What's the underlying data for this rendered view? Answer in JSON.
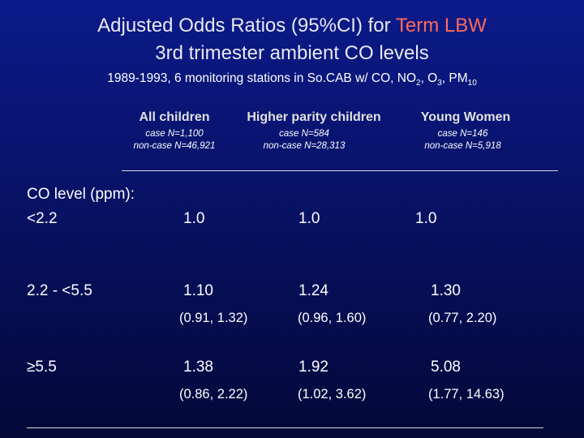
{
  "title": {
    "line1_prefix": "Adjusted Odds Ratios (95%CI) for ",
    "line1_highlight": "Term LBW",
    "line2": "3rd trimester ambient CO levels"
  },
  "subtitle": {
    "prefix": "1989-1993, 6 monitoring stations in So.CAB w/ CO, NO",
    "no2_sub": "2",
    "o3_text": ", O",
    "o3_sub": "3",
    "pm_text": ", PM",
    "pm_sub": "10"
  },
  "columns": [
    {
      "header": "All children",
      "cases": "case N=1,100",
      "noncases": "non-case N=46,921"
    },
    {
      "header": "Higher parity children",
      "cases": "case N=584",
      "noncases": "non-case N=28,313"
    },
    {
      "header": "Young Women",
      "cases": "case N=146",
      "noncases": "non-case N=5,918"
    }
  ],
  "row_header": {
    "line1": "CO level (ppm):"
  },
  "rows": [
    {
      "label": "<2.2",
      "values": [
        {
          "or": "1.0",
          "ci": ""
        },
        {
          "or": "1.0",
          "ci": ""
        },
        {
          "or": "1.0",
          "ci": ""
        }
      ]
    },
    {
      "label": "2.2 - <5.5",
      "values": [
        {
          "or": "1.10",
          "ci": "(0.91, 1.32)"
        },
        {
          "or": "1.24",
          "ci": "(0.96, 1.60)"
        },
        {
          "or": "1.30",
          "ci": "(0.77, 2.20)"
        }
      ]
    },
    {
      "label": "≥5.5",
      "values": [
        {
          "or": "1.38",
          "ci": "(0.86, 2.22)"
        },
        {
          "or": "1.92",
          "ci": "(1.02, 3.62)"
        },
        {
          "or": "5.08",
          "ci": "(1.77, 14.63)"
        }
      ]
    }
  ],
  "colors": {
    "background_top": "#0b1a8a",
    "background_bottom": "#030838",
    "highlight": "#ff6a5a",
    "text": "#ffffff"
  }
}
